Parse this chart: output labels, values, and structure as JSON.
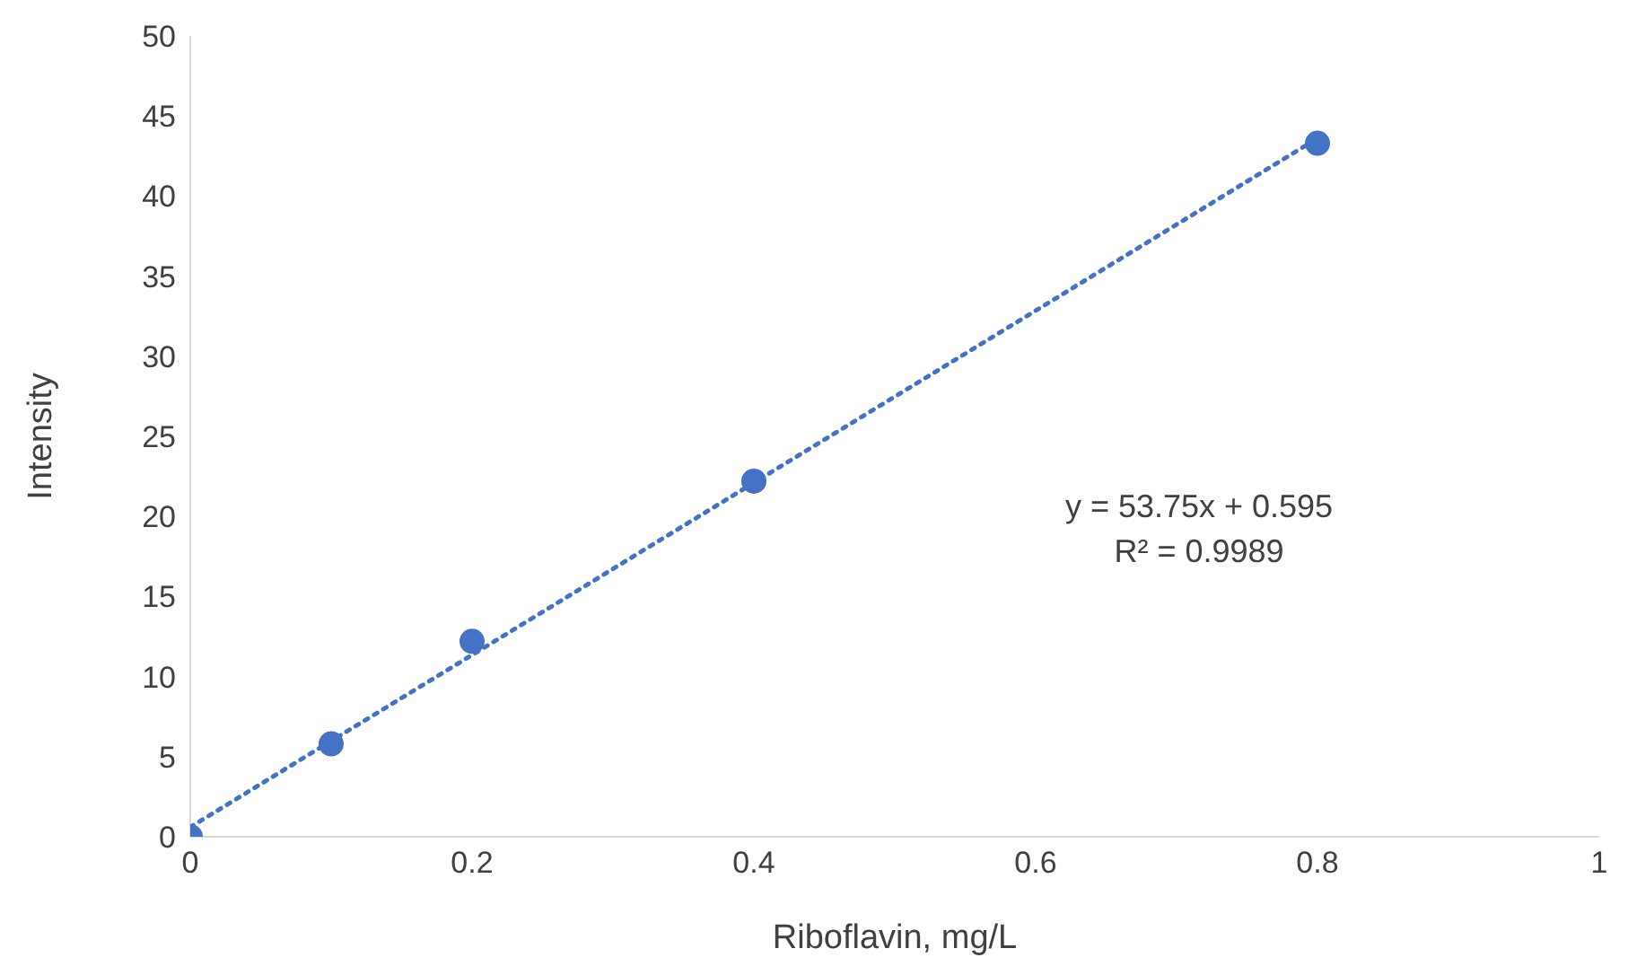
{
  "chart_data": {
    "type": "scatter",
    "xlabel": "Riboflavin, mg/L",
    "ylabel": "Intensity",
    "x": [
      0,
      0.1,
      0.2,
      0.4,
      0.8
    ],
    "series": [
      {
        "color": "#4472c4",
        "values": [
          0,
          5.8,
          12.2,
          22.2,
          43.3
        ],
        "marker": "circle"
      },
      {
        "type": "line",
        "color": "#4472c4",
        "x": [
          0,
          0.8
        ],
        "values": [
          0.6,
          43.6
        ],
        "line_style": "dotted",
        "marker": "none"
      }
    ],
    "xlim": [
      0,
      1
    ],
    "xticks": [
      0,
      0.2,
      0.4,
      0.6,
      0.8,
      1
    ],
    "ylim": [
      0,
      50
    ],
    "yticks": [
      0,
      5,
      10,
      15,
      20,
      25,
      30,
      35,
      40,
      45,
      50
    ],
    "grid": false,
    "legend": false,
    "annotations": [
      "y = 53.75x + 0.595",
      "R² = 0.9989"
    ]
  }
}
